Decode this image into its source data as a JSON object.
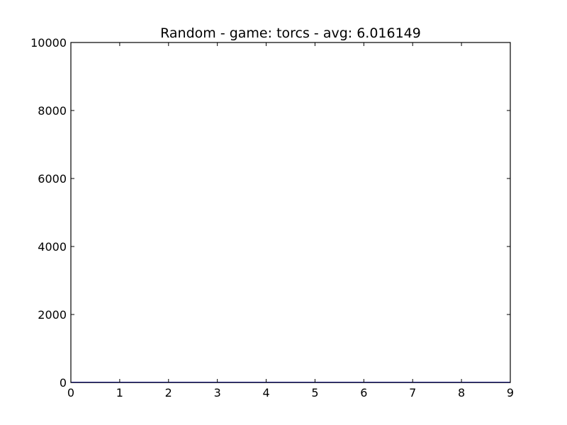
{
  "chart_data": {
    "type": "line",
    "title": "Random - game: torcs - avg: 6.016149",
    "xlabel": "",
    "ylabel": "",
    "xlim": [
      0,
      9
    ],
    "ylim": [
      0,
      10000
    ],
    "x_ticks": [
      0,
      1,
      2,
      3,
      4,
      5,
      6,
      7,
      8,
      9
    ],
    "y_ticks": [
      0,
      2000,
      4000,
      6000,
      8000,
      10000
    ],
    "grid": false,
    "legend": "none",
    "series": [
      {
        "color": "#0000ff",
        "x": [
          0,
          1,
          2,
          3,
          4,
          5,
          6,
          7,
          8,
          9
        ],
        "y": [
          6,
          6,
          6,
          6,
          6,
          6,
          6,
          6,
          6,
          6
        ]
      }
    ]
  }
}
